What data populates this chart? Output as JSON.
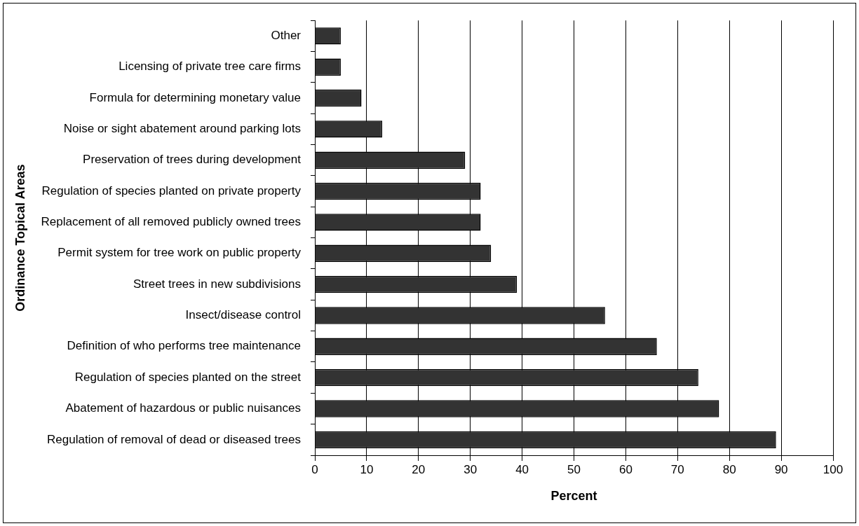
{
  "chart_data": {
    "type": "bar",
    "orientation": "horizontal",
    "xlabel": "Percent",
    "ylabel": "Ordinance Topical Areas",
    "categories": [
      "Other",
      "Licensing of private tree care firms",
      "Formula for determining monetary value",
      "Noise or sight abatement around parking lots",
      "Preservation of trees during development",
      "Regulation of species planted on private property",
      "Replacement of all removed publicly owned trees",
      "Permit system for tree work on public property",
      "Street trees in new subdivisions",
      "Insect/disease control",
      "Definition of who performs tree maintenance",
      "Regulation of species planted on the street",
      "Abatement of hazardous or public nuisances",
      "Regulation of removal of dead or diseased trees"
    ],
    "values": [
      5,
      5,
      9,
      13,
      29,
      32,
      32,
      34,
      39,
      56,
      66,
      74,
      78,
      89
    ],
    "color": "#333333",
    "xlim": [
      0,
      100
    ],
    "xticks": [
      0,
      10,
      20,
      30,
      40,
      50,
      60,
      70,
      80,
      90,
      100
    ],
    "grid": "x",
    "legend": false
  }
}
